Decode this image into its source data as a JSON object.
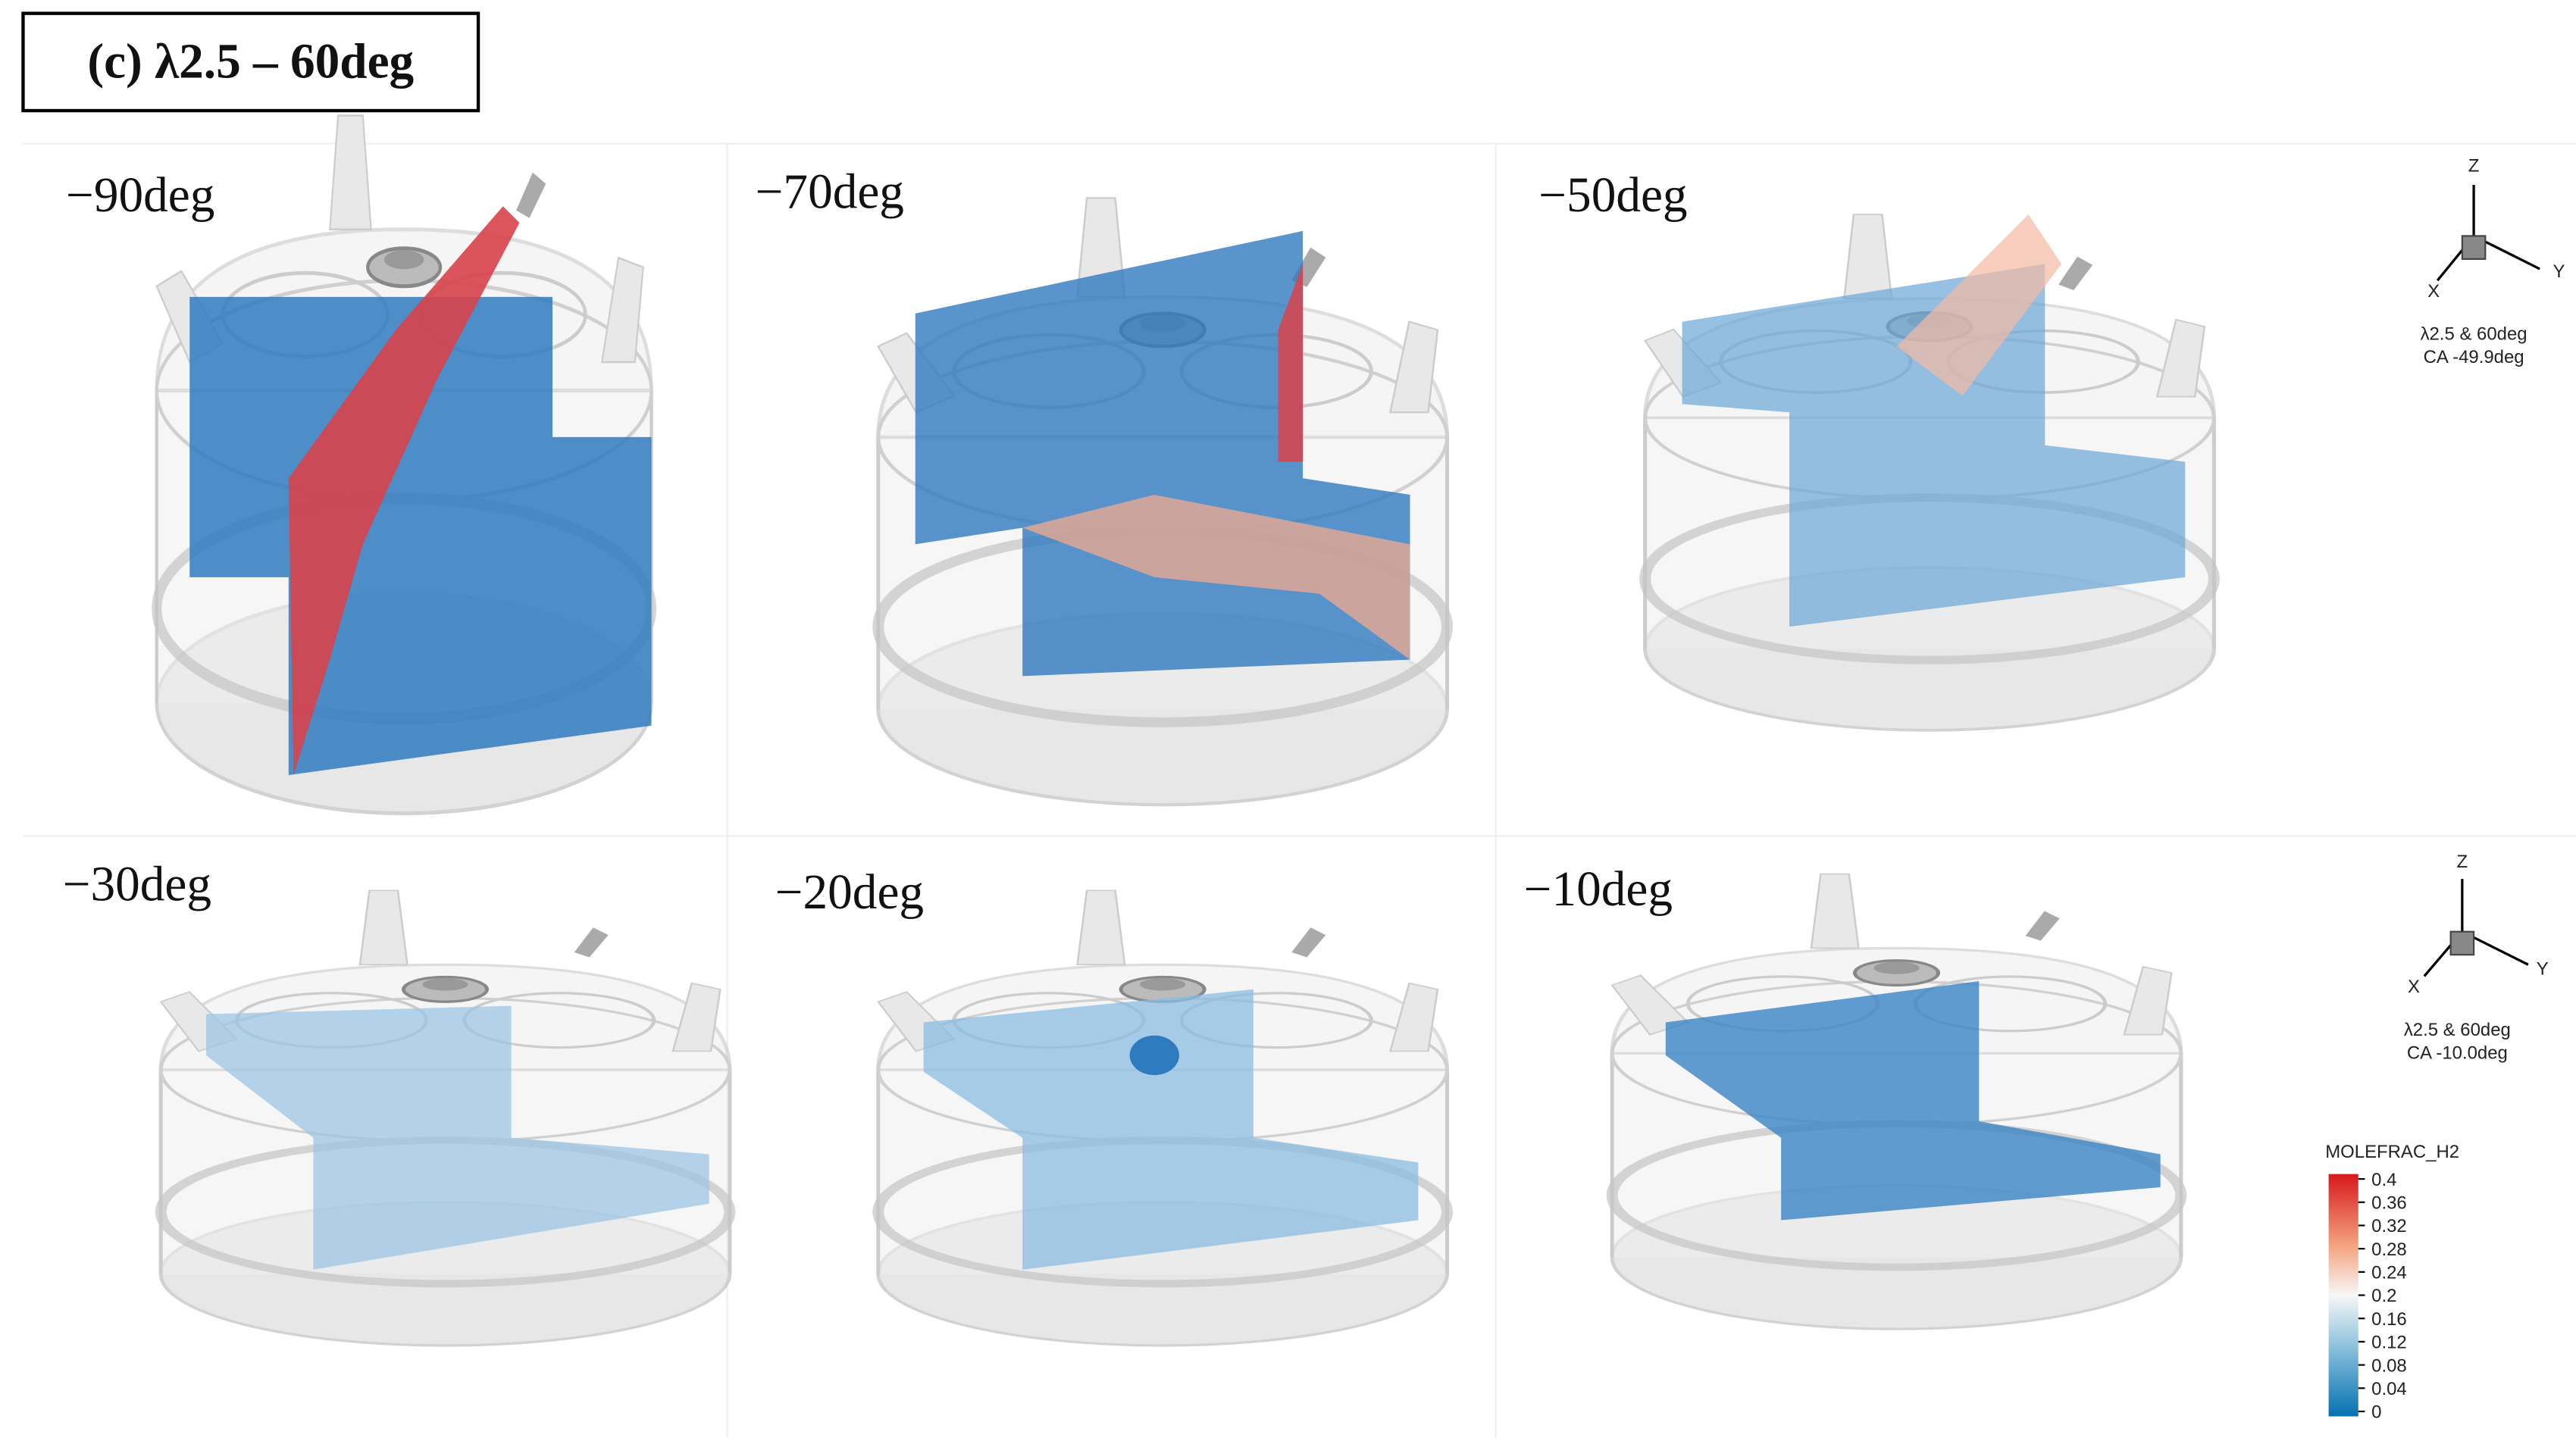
{
  "title": "(c) λ2.5 – 60deg",
  "panels": [
    {
      "label": "−90deg"
    },
    {
      "label": "−70deg"
    },
    {
      "label": "−50deg"
    },
    {
      "label": "−30deg"
    },
    {
      "label": "−20deg"
    },
    {
      "label": "−10deg"
    }
  ],
  "axes_triads": [
    {
      "z": "Z",
      "y": "Y",
      "x": "X",
      "case": "λ2.5 & 60deg",
      "crank_angle": "CA -49.9deg"
    },
    {
      "z": "Z",
      "y": "Y",
      "x": "X",
      "case": "λ2.5 & 60deg",
      "crank_angle": "CA -10.0deg"
    }
  ],
  "colorbar": {
    "title": "MOLEFRAC_H2",
    "range": [
      0,
      0.4
    ],
    "ticks": [
      0.4,
      0.36,
      0.32,
      0.28,
      0.24,
      0.2,
      0.16,
      0.12,
      0.08,
      0.04,
      0
    ]
  }
}
